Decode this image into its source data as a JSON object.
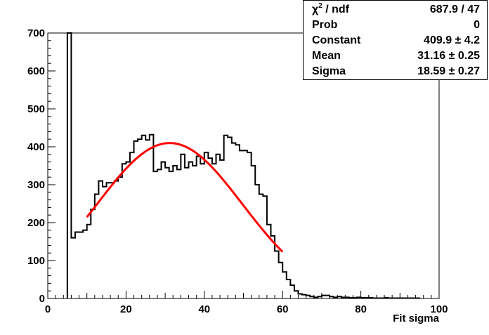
{
  "chart_data": {
    "type": "histogram",
    "title": "",
    "xlabel": "Fit sigma",
    "ylabel": "",
    "xlim": [
      0,
      100
    ],
    "ylim": [
      0,
      700
    ],
    "x_ticks": [
      0,
      20,
      40,
      60,
      80,
      100
    ],
    "y_ticks": [
      0,
      100,
      200,
      300,
      400,
      500,
      600,
      700
    ],
    "bin_width": 1,
    "bins": [
      [
        5,
        700
      ],
      [
        6,
        160
      ],
      [
        7,
        175
      ],
      [
        8,
        175
      ],
      [
        9,
        180
      ],
      [
        10,
        195
      ],
      [
        11,
        235
      ],
      [
        12,
        275
      ],
      [
        13,
        310
      ],
      [
        14,
        295
      ],
      [
        15,
        305
      ],
      [
        16,
        305
      ],
      [
        17,
        310
      ],
      [
        18,
        320
      ],
      [
        19,
        355
      ],
      [
        20,
        360
      ],
      [
        21,
        385
      ],
      [
        22,
        415
      ],
      [
        23,
        420
      ],
      [
        24,
        430
      ],
      [
        25,
        418
      ],
      [
        26,
        432
      ],
      [
        27,
        335
      ],
      [
        28,
        340
      ],
      [
        29,
        360
      ],
      [
        30,
        345
      ],
      [
        31,
        335
      ],
      [
        32,
        350
      ],
      [
        33,
        340
      ],
      [
        34,
        380
      ],
      [
        35,
        345
      ],
      [
        36,
        360
      ],
      [
        37,
        350
      ],
      [
        38,
        375
      ],
      [
        39,
        355
      ],
      [
        40,
        385
      ],
      [
        41,
        370
      ],
      [
        42,
        355
      ],
      [
        43,
        380
      ],
      [
        44,
        365
      ],
      [
        45,
        430
      ],
      [
        46,
        425
      ],
      [
        47,
        410
      ],
      [
        48,
        405
      ],
      [
        49,
        390
      ],
      [
        50,
        390
      ],
      [
        51,
        385
      ],
      [
        52,
        350
      ],
      [
        53,
        300
      ],
      [
        54,
        275
      ],
      [
        55,
        270
      ],
      [
        56,
        195
      ],
      [
        57,
        165
      ],
      [
        58,
        125
      ],
      [
        59,
        95
      ],
      [
        60,
        70
      ],
      [
        61,
        50
      ],
      [
        62,
        35
      ],
      [
        63,
        20
      ],
      [
        64,
        12
      ],
      [
        65,
        10
      ],
      [
        66,
        8
      ],
      [
        67,
        5
      ],
      [
        68,
        3
      ],
      [
        69,
        5
      ],
      [
        70,
        8
      ],
      [
        71,
        8
      ],
      [
        72,
        5
      ],
      [
        73,
        3
      ],
      [
        74,
        5
      ],
      [
        75,
        3
      ],
      [
        76,
        3
      ],
      [
        77,
        2
      ],
      [
        78,
        2
      ],
      [
        79,
        3
      ],
      [
        80,
        2
      ],
      [
        81,
        2
      ],
      [
        82,
        2
      ],
      [
        83,
        1
      ],
      [
        84,
        1
      ],
      [
        85,
        1
      ],
      [
        86,
        2
      ],
      [
        87,
        1
      ],
      [
        88,
        1
      ],
      [
        89,
        1
      ],
      [
        90,
        1
      ],
      [
        91,
        1
      ],
      [
        92,
        1
      ],
      [
        93,
        1
      ],
      [
        94,
        1
      ]
    ],
    "fit": {
      "function": "gaus",
      "range": [
        10,
        60
      ],
      "constant": 409.9,
      "mean": 31.16,
      "sigma": 18.59,
      "color": "#ff0000"
    },
    "colors": {
      "histogram": "#000000",
      "fit": "#ff0000"
    }
  },
  "stats": {
    "rows": [
      {
        "label_prefix": "χ",
        "label_sup": "2",
        "label_suffix": " / ndf",
        "value": "687.9 / 47"
      },
      {
        "label": "Prob",
        "value": "0"
      },
      {
        "label": "Constant",
        "value": "409.9 ± 4.2"
      },
      {
        "label": "Mean",
        "value": "31.16 ± 0.25"
      },
      {
        "label": "Sigma",
        "value": "18.59 ± 0.27"
      }
    ]
  }
}
